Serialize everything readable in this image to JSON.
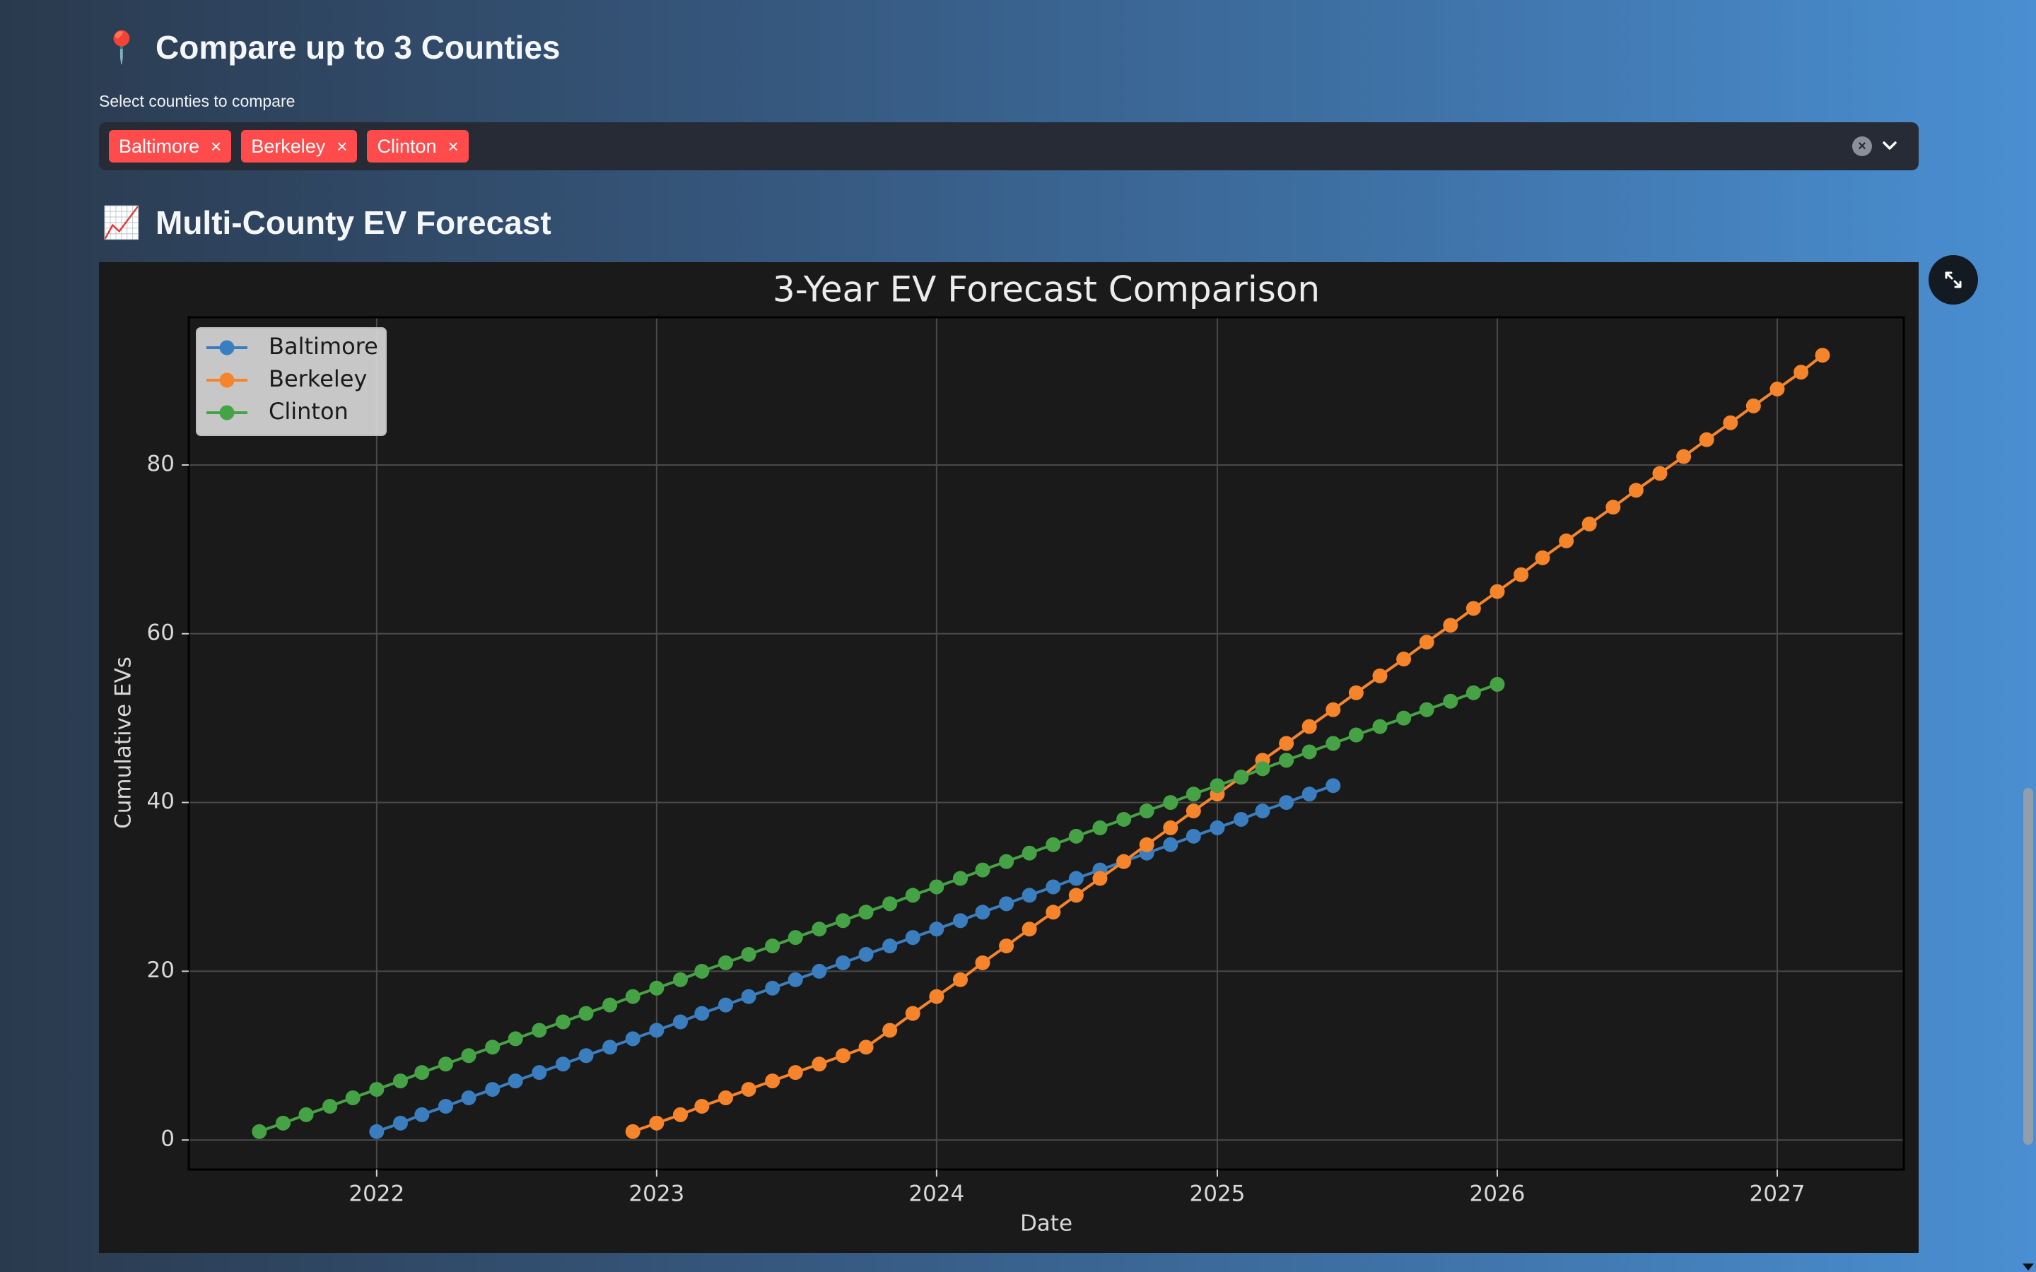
{
  "compare_section": {
    "emoji": "📍",
    "title": "Compare up to 3 Counties",
    "select_label": "Select counties to compare",
    "selected": [
      "Baltimore",
      "Berkeley",
      "Clinton"
    ],
    "remove_glyph": "×"
  },
  "forecast_section": {
    "emoji": "📈",
    "title": "Multi-County EV Forecast"
  },
  "colors": {
    "Baltimore": "#3a7ebf",
    "Berkeley": "#f5842b",
    "Clinton": "#46a345",
    "tag": "#ff4b4b"
  },
  "chart_data": {
    "type": "line",
    "title": "3-Year EV Forecast Comparison",
    "xlabel": "Date",
    "ylabel": "Cumulative EVs",
    "x_ticks": [
      "2022",
      "2023",
      "2024",
      "2025",
      "2026",
      "2027"
    ],
    "y_ticks": [
      "0",
      "20",
      "40",
      "60",
      "80"
    ],
    "xlim": [
      "2021-05-01",
      "2027-06-15"
    ],
    "ylim": [
      -3.5,
      97.5
    ],
    "grid": true,
    "legend_position": "top-left",
    "marker": "circle",
    "series": [
      {
        "name": "Baltimore",
        "start": "2022-01",
        "freq": "monthly",
        "values": [
          1,
          2,
          3,
          4,
          5,
          6,
          7,
          8,
          9,
          10,
          11,
          12,
          13,
          14,
          15,
          16,
          17,
          18,
          19,
          20,
          21,
          22,
          23,
          24,
          25,
          26,
          27,
          28,
          29,
          30,
          31,
          32,
          33,
          34,
          35,
          36,
          37,
          38,
          39,
          40,
          41,
          42
        ]
      },
      {
        "name": "Berkeley",
        "start": "2022-12",
        "freq": "monthly",
        "values": [
          1,
          2,
          3,
          4,
          5,
          6,
          7,
          8,
          9,
          10,
          11,
          13,
          15,
          17,
          19,
          21,
          23,
          25,
          27,
          29,
          31,
          33,
          35,
          37,
          39,
          41,
          43,
          45,
          47,
          49,
          51,
          53,
          55,
          57,
          59,
          61,
          63,
          65,
          67,
          69,
          71,
          73,
          75,
          77,
          79,
          81,
          83,
          85,
          87,
          89,
          91,
          93
        ]
      },
      {
        "name": "Clinton",
        "start": "2021-08",
        "freq": "monthly",
        "values": [
          1,
          2,
          3,
          4,
          5,
          6,
          7,
          8,
          9,
          10,
          11,
          12,
          13,
          14,
          15,
          16,
          17,
          18,
          19,
          20,
          21,
          22,
          23,
          24,
          25,
          26,
          27,
          28,
          29,
          30,
          31,
          32,
          33,
          34,
          35,
          36,
          37,
          38,
          39,
          40,
          41,
          42,
          43,
          44,
          45,
          46,
          47,
          48,
          49,
          50,
          51,
          52,
          53,
          54
        ]
      }
    ]
  }
}
